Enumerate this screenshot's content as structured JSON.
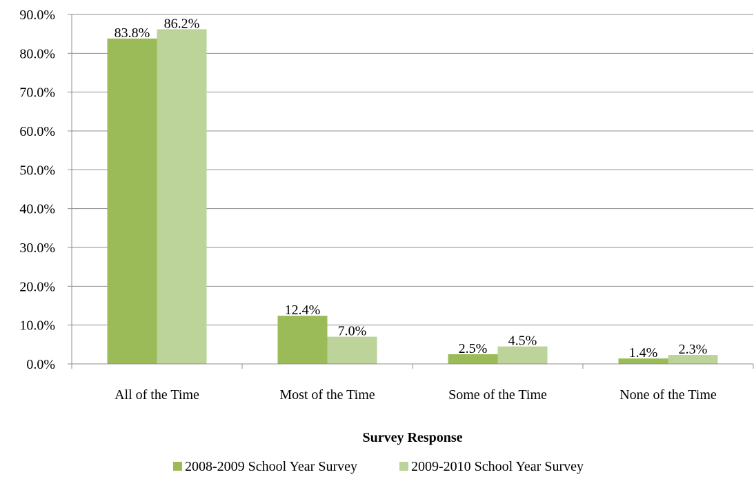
{
  "chart_data": {
    "type": "bar",
    "title": "",
    "xlabel": "Survey Response",
    "ylabel": "",
    "categories": [
      "All of the Time",
      "Most of the Time",
      "Some of the Time",
      "None of the Time"
    ],
    "series": [
      {
        "name": "2008-2009 School Year Survey",
        "values": [
          83.8,
          12.4,
          2.5,
          1.4
        ],
        "labels": [
          "83.8%",
          "12.4%",
          "2.5%",
          "1.4%"
        ],
        "color": "#9BBB59"
      },
      {
        "name": "2009-2010 School Year Survey",
        "values": [
          86.2,
          7.0,
          4.5,
          2.3
        ],
        "labels": [
          "86.2%",
          "7.0%",
          "4.5%",
          "2.3%"
        ],
        "color": "#BCD39A"
      }
    ],
    "yticks": [
      0,
      10,
      20,
      30,
      40,
      50,
      60,
      70,
      80,
      90
    ],
    "ytick_labels": [
      "0.0%",
      "10.0%",
      "20.0%",
      "30.0%",
      "40.0%",
      "50.0%",
      "60.0%",
      "70.0%",
      "80.0%",
      "90.0%"
    ],
    "ylim": [
      0,
      90
    ],
    "grid": true,
    "legend_position": "bottom"
  }
}
